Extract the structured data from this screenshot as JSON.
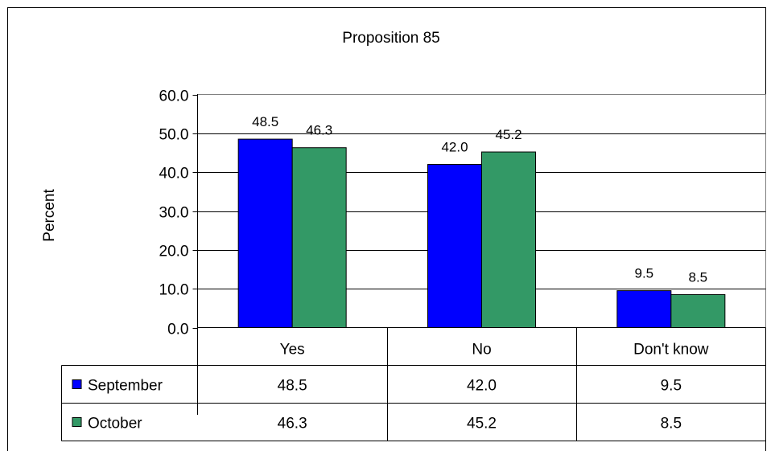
{
  "chart_data": {
    "type": "bar",
    "title": "Proposition 85",
    "xlabel": "",
    "ylabel": "Percent",
    "categories": [
      "Yes",
      "No",
      "Don't know"
    ],
    "series": [
      {
        "name": "September",
        "values": [
          48.5,
          42.0,
          9.5
        ],
        "labels": [
          "48.5",
          "42.0",
          "9.5"
        ],
        "color": "#0000ff"
      },
      {
        "name": "October",
        "values": [
          46.3,
          45.2,
          8.5
        ],
        "labels": [
          "46.3",
          "45.2",
          "8.5"
        ],
        "color": "#339966"
      }
    ],
    "ylim": [
      0,
      60
    ],
    "yticks": [
      "0.0",
      "10.0",
      "20.0",
      "30.0",
      "40.0",
      "50.0",
      "60.0"
    ],
    "grid": true,
    "legend": "data-table"
  }
}
